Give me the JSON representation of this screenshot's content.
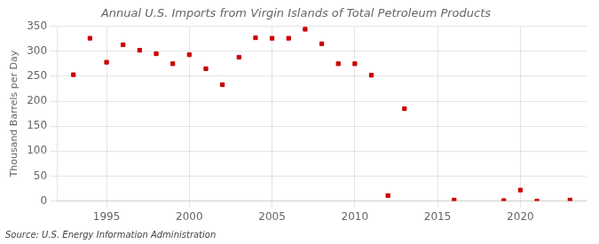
{
  "chart_data": {
    "type": "scatter",
    "title": "Annual U.S. Imports from Virgin Islands of Total Petroleum Products",
    "ylabel": "Thousand Barrels per Day",
    "annotation": "Source: U.S. Energy Information Administration",
    "x": [
      1993,
      1994,
      1995,
      1996,
      1997,
      1998,
      1999,
      2000,
      2001,
      2002,
      2003,
      2004,
      2005,
      2006,
      2007,
      2008,
      2009,
      2010,
      2011,
      2012,
      2013,
      2016,
      2019,
      2020,
      2021,
      2023
    ],
    "values": [
      253,
      326,
      278,
      313,
      302,
      295,
      275,
      293,
      265,
      233,
      288,
      327,
      326,
      326,
      344,
      315,
      275,
      275,
      252,
      11,
      185,
      2,
      1,
      22,
      0,
      2
    ],
    "color": "#cc0000",
    "marker": "square",
    "xlim": [
      1992,
      2024
    ],
    "ylim": [
      0,
      350
    ],
    "xticks": [
      1995,
      2000,
      2005,
      2010,
      2015,
      2020
    ],
    "yticks": [
      0,
      50,
      100,
      150,
      200,
      250,
      300,
      350
    ],
    "grid": true
  }
}
